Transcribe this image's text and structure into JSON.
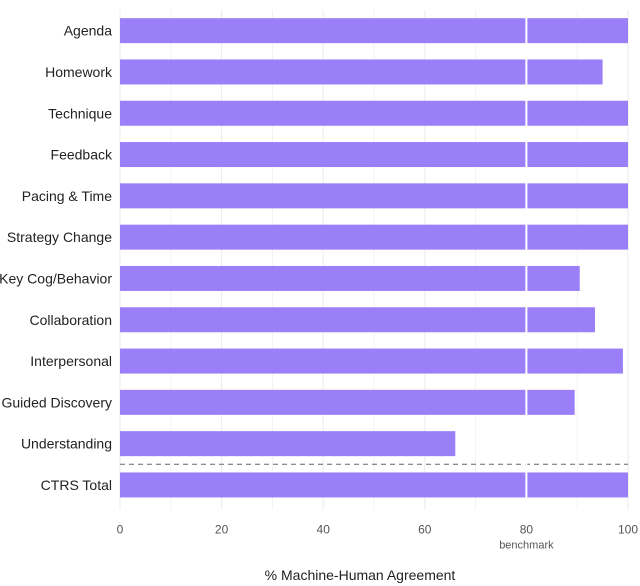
{
  "chart_data": {
    "type": "bar",
    "orientation": "horizontal",
    "categories": [
      "Agenda",
      "Homework",
      "Technique",
      "Feedback",
      "Pacing & Time",
      "Strategy Change",
      "Key Cog/Behavior",
      "Collaboration",
      "Interpersonal",
      "Guided Discovery",
      "Understanding",
      "CTRS Total"
    ],
    "values": [
      100,
      95,
      100,
      100,
      100,
      100,
      90.5,
      93.5,
      99,
      89.5,
      66,
      100
    ],
    "xlabel": "% Machine-Human Agreement",
    "ylabel": "",
    "xlim": [
      0,
      100
    ],
    "x_ticks": [
      0,
      20,
      40,
      60,
      80,
      100
    ],
    "benchmark": {
      "value": 80,
      "label": "benchmark"
    },
    "separator_before": "CTRS Total",
    "grid": true,
    "legend": "none",
    "colors": {
      "bar": "#9b7ff8",
      "benchmark_line": "#ffffff",
      "grid": "#ebebeb",
      "separator": "#666666"
    }
  }
}
